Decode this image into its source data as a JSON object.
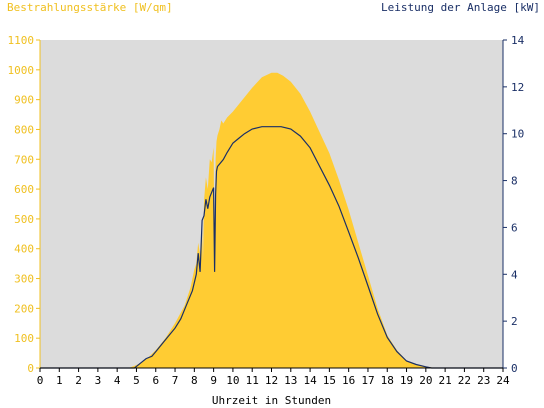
{
  "colors": {
    "background": "#ffffff",
    "plot_area": "#dcdcdc",
    "irradiance": "#ffcc33",
    "irradiance_text": "#f0c020",
    "power": "#1a2f66",
    "power_text": "#1a2f66",
    "axis_text": "#000000"
  },
  "chart_data": {
    "type": "area",
    "ylabel_left": "Bestrahlungsstärke [W/qm]",
    "ylabel_right": "Leistung der Anlage [kW]",
    "xlabel": "Uhrzeit in Stunden",
    "xlim": [
      0,
      24
    ],
    "ylim_left": [
      0,
      1100
    ],
    "ylim_right": [
      0,
      14
    ],
    "x_ticks": [
      "0",
      "1",
      "2",
      "3",
      "4",
      "5",
      "6",
      "7",
      "8",
      "9",
      "10",
      "11",
      "12",
      "13",
      "14",
      "15",
      "16",
      "17",
      "18",
      "19",
      "20",
      "21",
      "22",
      "23",
      "24"
    ],
    "y_ticks_left": [
      "0",
      "100",
      "200",
      "300",
      "400",
      "500",
      "600",
      "700",
      "800",
      "900",
      "1000",
      "1100"
    ],
    "y_ticks_right": [
      "0",
      "2",
      "4",
      "6",
      "8",
      "10",
      "12",
      "14"
    ],
    "grid": false,
    "series": [
      {
        "name": "Bestrahlungsstärke [W/qm]",
        "axis": "left",
        "kind": "area",
        "x": [
          0,
          4.6,
          5.0,
          5.3,
          5.6,
          6.0,
          6.5,
          7.0,
          7.5,
          7.8,
          8.0,
          8.1,
          8.2,
          8.3,
          8.4,
          8.45,
          8.5,
          8.6,
          8.7,
          8.8,
          8.9,
          9.0,
          9.05,
          9.1,
          9.15,
          9.2,
          9.3,
          9.4,
          9.5,
          9.7,
          10.0,
          10.5,
          11.0,
          11.5,
          12.0,
          12.3,
          12.6,
          13.0,
          13.5,
          14.0,
          14.5,
          15.0,
          15.5,
          16.0,
          16.5,
          17.0,
          17.5,
          18.0,
          18.5,
          19.0,
          19.5,
          20.0,
          20.5,
          21.0,
          24
        ],
        "y": [
          0,
          0,
          10,
          20,
          35,
          60,
          100,
          150,
          210,
          270,
          330,
          350,
          420,
          380,
          470,
          360,
          560,
          640,
          600,
          700,
          690,
          740,
          330,
          700,
          760,
          780,
          800,
          830,
          820,
          840,
          860,
          900,
          940,
          975,
          990,
          990,
          980,
          960,
          920,
          860,
          790,
          720,
          630,
          530,
          420,
          310,
          200,
          110,
          60,
          25,
          10,
          5,
          0,
          0,
          0
        ]
      },
      {
        "name": "Leistung der Anlage [kW]",
        "axis": "right",
        "kind": "line",
        "x": [
          0,
          4.9,
          5.2,
          5.5,
          5.8,
          6.0,
          6.3,
          6.6,
          7.0,
          7.3,
          7.6,
          7.9,
          8.1,
          8.2,
          8.3,
          8.4,
          8.5,
          8.6,
          8.7,
          8.8,
          8.9,
          9.0,
          9.05,
          9.1,
          9.15,
          9.2,
          9.3,
          9.5,
          9.7,
          10.0,
          10.3,
          10.6,
          11.0,
          11.5,
          12.0,
          12.5,
          13.0,
          13.5,
          14.0,
          14.5,
          15.0,
          15.5,
          16.0,
          16.5,
          17.0,
          17.5,
          18.0,
          18.5,
          19.0,
          19.5,
          20.0,
          20.3,
          20.6,
          21.0,
          24
        ],
        "y": [
          0,
          0,
          0.2,
          0.4,
          0.5,
          0.7,
          1.0,
          1.3,
          1.7,
          2.1,
          2.7,
          3.3,
          4.0,
          4.9,
          4.1,
          6.3,
          6.5,
          7.2,
          6.8,
          7.3,
          7.5,
          7.7,
          4.1,
          7.4,
          8.4,
          8.6,
          8.7,
          8.9,
          9.2,
          9.6,
          9.8,
          10.0,
          10.2,
          10.3,
          10.3,
          10.3,
          10.2,
          9.9,
          9.4,
          8.6,
          7.8,
          6.9,
          5.8,
          4.7,
          3.5,
          2.3,
          1.3,
          0.7,
          0.3,
          0.15,
          0.05,
          0,
          0,
          0,
          0
        ]
      }
    ]
  }
}
